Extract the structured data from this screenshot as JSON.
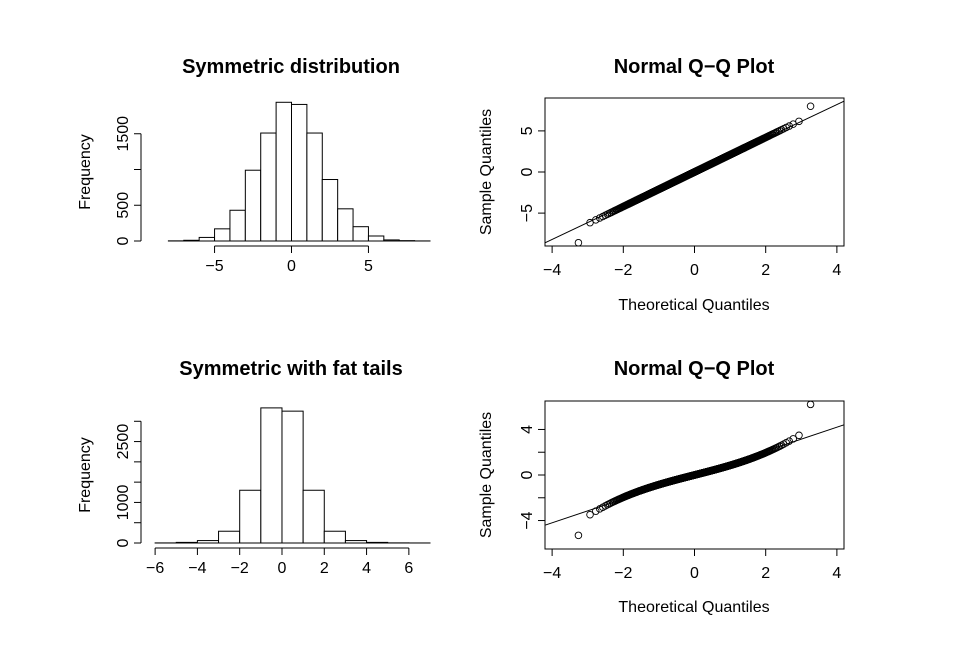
{
  "chart_data": [
    {
      "type": "histogram",
      "title": "Symmetric distribution",
      "xlabel": "",
      "ylabel": "Frequency",
      "xlim": [
        -9,
        9
      ],
      "ylim": [
        0,
        2000
      ],
      "bins": [
        {
          "x0": -8,
          "x1": -7,
          "count": 2
        },
        {
          "x0": -7,
          "x1": -6,
          "count": 10
        },
        {
          "x0": -6,
          "x1": -5,
          "count": 50
        },
        {
          "x0": -5,
          "x1": -4,
          "count": 170
        },
        {
          "x0": -4,
          "x1": -3,
          "count": 430
        },
        {
          "x0": -3,
          "x1": -2,
          "count": 990
        },
        {
          "x0": -2,
          "x1": -1,
          "count": 1510
        },
        {
          "x0": -1,
          "x1": 0,
          "count": 1940
        },
        {
          "x0": 0,
          "x1": 1,
          "count": 1910
        },
        {
          "x0": 1,
          "x1": 2,
          "count": 1510
        },
        {
          "x0": 2,
          "x1": 3,
          "count": 860
        },
        {
          "x0": 3,
          "x1": 4,
          "count": 450
        },
        {
          "x0": 4,
          "x1": 5,
          "count": 200
        },
        {
          "x0": 5,
          "x1": 6,
          "count": 70
        },
        {
          "x0": 6,
          "x1": 7,
          "count": 15
        },
        {
          "x0": 7,
          "x1": 8,
          "count": 5
        },
        {
          "x0": 8,
          "x1": 9,
          "count": 1
        }
      ],
      "xticks": [
        -5,
        0,
        5
      ],
      "yticks": [
        0,
        500,
        1500
      ],
      "yticks_minor": [
        1000
      ],
      "grid": false,
      "legend": "none"
    },
    {
      "type": "scatter",
      "title": "Normal Q−Q Plot",
      "xlabel": "Theoretical Quantiles",
      "ylabel": "Sample Quantiles",
      "xlim": [
        -4.2,
        4.2
      ],
      "ylim": [
        -9,
        9
      ],
      "distribution": "normal",
      "sample_sd": 2.1,
      "sample_range": [
        -8.6,
        8.0
      ],
      "reference_line": {
        "intercept": 0,
        "slope": 2.05
      },
      "xticks": [
        -4,
        -2,
        0,
        2,
        4
      ],
      "yticks": [
        -5,
        0,
        5
      ],
      "grid": false,
      "legend": "none"
    },
    {
      "type": "histogram",
      "title": "Symmetric with fat tails",
      "xlabel": "",
      "ylabel": "Frequency",
      "xlim": [
        -6.1,
        7
      ],
      "ylim": [
        0,
        3500
      ],
      "bins": [
        {
          "x0": -6,
          "x1": -5,
          "count": 2
        },
        {
          "x0": -5,
          "x1": -4,
          "count": 15
        },
        {
          "x0": -4,
          "x1": -3,
          "count": 60
        },
        {
          "x0": -3,
          "x1": -2,
          "count": 290
        },
        {
          "x0": -2,
          "x1": -1,
          "count": 1300
        },
        {
          "x0": -1,
          "x1": 0,
          "count": 3330
        },
        {
          "x0": 0,
          "x1": 1,
          "count": 3250
        },
        {
          "x0": 1,
          "x1": 2,
          "count": 1300
        },
        {
          "x0": 2,
          "x1": 3,
          "count": 290
        },
        {
          "x0": 3,
          "x1": 4,
          "count": 60
        },
        {
          "x0": 4,
          "x1": 5,
          "count": 15
        },
        {
          "x0": 5,
          "x1": 6,
          "count": 3
        },
        {
          "x0": 6,
          "x1": 7,
          "count": 1
        }
      ],
      "xticks": [
        -6,
        -4,
        -2,
        0,
        2,
        4,
        6
      ],
      "yticks": [
        0,
        1000,
        2500
      ],
      "yticks_minor": [
        500,
        1500,
        2000,
        3000
      ],
      "grid": false,
      "legend": "none"
    },
    {
      "type": "scatter",
      "title": "Normal Q−Q Plot",
      "xlabel": "Theoretical Quantiles",
      "ylabel": "Sample Quantiles",
      "xlim": [
        -4.2,
        4.2
      ],
      "ylim": [
        -6.5,
        6.5
      ],
      "distribution": "fat-tailed (cubic)",
      "sample_range": [
        -5.3,
        6.2
      ],
      "reference_line": {
        "intercept": 0,
        "slope": 1.05
      },
      "xticks": [
        -4,
        -2,
        0,
        2,
        4
      ],
      "yticks": [
        -4,
        0,
        4
      ],
      "yticks_minor": [
        -2,
        2
      ],
      "grid": false,
      "legend": "none"
    }
  ]
}
